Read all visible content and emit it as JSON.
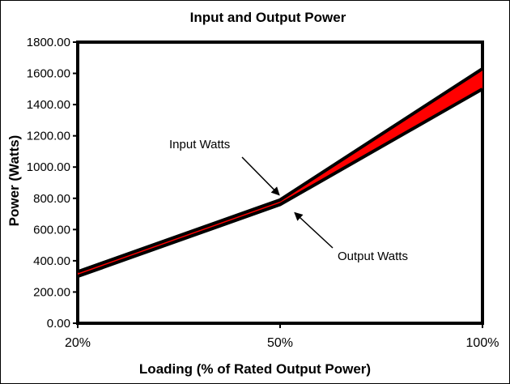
{
  "chart_data": {
    "type": "area",
    "title": "Input and Output Power",
    "xlabel": "Loading (% of Rated Output Power)",
    "ylabel": "Power (Watts)",
    "categories": [
      "20%",
      "50%",
      "100%"
    ],
    "ylim": [
      0,
      1800
    ],
    "yticks": [
      "0.00",
      "200.00",
      "400.00",
      "600.00",
      "800.00",
      "1000.00",
      "1200.00",
      "1400.00",
      "1600.00",
      "1800.00"
    ],
    "grid": false,
    "series": [
      {
        "name": "Input Watts",
        "values": [
          330,
          790,
          1630
        ]
      },
      {
        "name": "Output Watts",
        "values": [
          300,
          760,
          1500
        ]
      }
    ],
    "fill_color": "#ff0000",
    "line_color": "#000000",
    "annotations": [
      {
        "text": "Input Watts",
        "target_series": 0,
        "target_index": 1
      },
      {
        "text": "Output Watts",
        "target_series": 1,
        "target_index": 1
      }
    ]
  }
}
